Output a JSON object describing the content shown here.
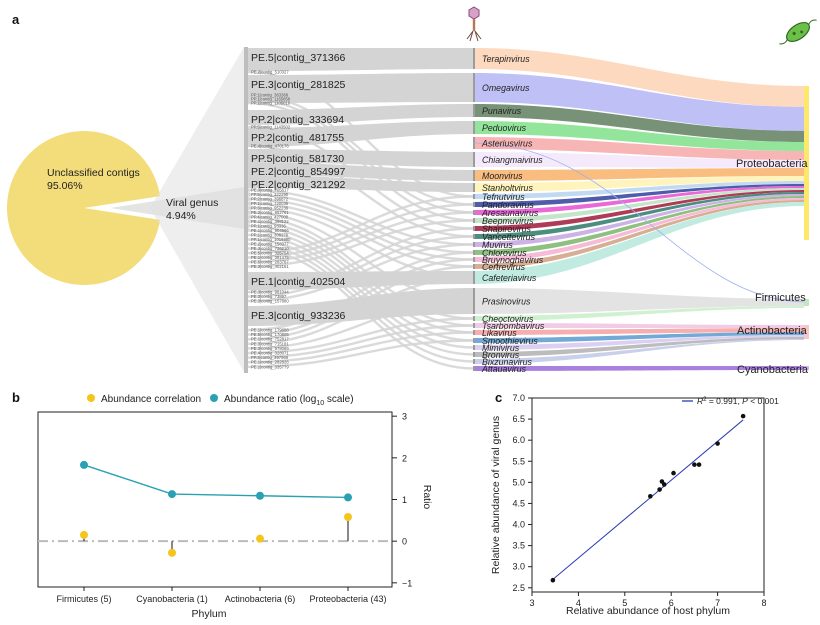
{
  "panels": {
    "a": "a",
    "b": "b",
    "c": "c"
  },
  "panel_a": {
    "pie": {
      "unclassified_label": "Unclassified contigs",
      "unclassified_pct": "95.06%",
      "viral_label": "Viral genus",
      "viral_pct": "4.94%",
      "values": [
        95.06,
        4.94
      ],
      "colors": [
        "#f3dc7a",
        "#e3e3e3"
      ]
    },
    "contigs_big": [
      "PE.5|contig_371366",
      "PE.3|contig_281825",
      "PP.2|contig_333694",
      "PP.2|contig_481755",
      "PP.5|contig_581730",
      "PE.2|contig_854997",
      "PE.2|contig_321292",
      "PE.1|contig_402504",
      "PE.3|contig_933236"
    ],
    "contigs_small": [
      "PE.2|contig_510327",
      "PP.1|contig_363368",
      "PP.1|contig_1165858",
      "PP.1|contig_1105016",
      "PP.5|contig_1143502",
      "PE.4|contig_470176",
      "PE.3|contig_705617",
      "PP.5|contig_322290",
      "PP.2|contig_396872",
      "PP.1|contig_720036",
      "PP.3|contig_952236",
      "PE.2|contig_852761",
      "PP.4|contig_427000",
      "PE.1|contig_398122",
      "PP.1|contig_93336",
      "PE.1|contig_904566",
      "PP.1|contig_308276",
      "PP.1|contig_1016990",
      "PE.2|contig_158377",
      "PE.3|contig_726210",
      "PE.5|contig_325754",
      "PE.1|contig_391475",
      "PE.5|contig_263767",
      "PE.3|contig_402161",
      "PE.3|contig_981044",
      "PE.3|contig_73897",
      "PE.3|contig_157880",
      "PE.1|contig_179888",
      "PE.5|contig_170805",
      "PE.1|contig_752817",
      "PE.3|contig_715181",
      "PE.3|contig_978089",
      "PE.4|contig_328071",
      "PP.3|contig_397969",
      "PE.1|contig_282826",
      "PE.1|contig_335779"
    ],
    "genera": [
      "Terapinvirus",
      "Omegavirus",
      "Punavirus",
      "Peduovirus",
      "Asteriusvirus",
      "Chiangmaivirus",
      "Moonvirus",
      "Stanholtvirus",
      "Tefnutvirus",
      "Pandoravirus",
      "Aresaunavirus",
      "Beepmuvirus",
      "Shapirovirus",
      "Vancettevirus",
      "Muvirus",
      "Chlorovirus",
      "Bruynoghevirus",
      "Certrevirus",
      "Cafeteriavirus",
      "Prasinovirus",
      "Cheoctovirus",
      "Tsarbombavirus",
      "Likavirus",
      "Smoothievirus",
      "Mimivirus",
      "Bronvirus",
      "Bixzunavirus",
      "Attauavirus"
    ],
    "phyla": [
      "Proteobacteria",
      "Firmicutes",
      "Actinobacteria",
      "Cyanobacteria"
    ],
    "icons": [
      "phage-icon",
      "bacterium-icon"
    ]
  },
  "panel_b": {
    "legend": {
      "correlation": "Abundance correlation",
      "ratio_prefix": "Abundance ratio (log",
      "ratio_sub": "10",
      "ratio_suffix": " scale)"
    },
    "xlabel": "Phylum",
    "ylabel": "Ratio",
    "categories": [
      "Firmicutes (5)",
      "Cyanobacteria (1)",
      "Actinobacteria (6)",
      "Proteobacteria (43)"
    ],
    "yticks": [
      "3",
      "2",
      "1",
      "0",
      "−1"
    ],
    "ylim": [
      -1.1,
      3.1
    ],
    "ratio": [
      1.83,
      1.13,
      1.09,
      1.05
    ],
    "correlation": [
      0.15,
      -0.28,
      0.06,
      0.58
    ],
    "colors": {
      "ratio": "#2aa1b3",
      "correlation": "#f5c51b",
      "baseline": "#bbbbbb"
    }
  },
  "chart_data": {
    "type": "scatter",
    "xlabel": "Relative abundance of host phylum",
    "ylabel": "Relative abundance of viral genus",
    "xlim": [
      3,
      8
    ],
    "ylim": [
      2.4,
      7.0
    ],
    "xticks": [
      "3",
      "4",
      "5",
      "6",
      "7",
      "8"
    ],
    "yticks": [
      "7.0",
      "6.5",
      "6.0",
      "5.5",
      "5.0",
      "4.5",
      "4.0",
      "3.5",
      "3.0",
      "2.5"
    ],
    "points": [
      [
        3.45,
        2.68
      ],
      [
        5.55,
        4.67
      ],
      [
        5.75,
        4.83
      ],
      [
        5.8,
        5.02
      ],
      [
        5.85,
        4.95
      ],
      [
        6.05,
        5.22
      ],
      [
        6.5,
        5.42
      ],
      [
        6.6,
        5.42
      ],
      [
        7.0,
        5.92
      ],
      [
        7.55,
        6.57
      ]
    ],
    "fit": {
      "from": [
        3.45,
        2.7
      ],
      "to": [
        7.55,
        6.48
      ]
    },
    "legend_r": "R",
    "legend_sup": "2",
    "legend_rest": " = 0.991, ",
    "legend_p": "P",
    "legend_tail": " < 0.001",
    "line_color": "#2b3bb5"
  }
}
